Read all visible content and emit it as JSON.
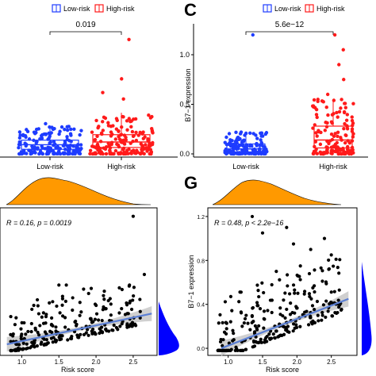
{
  "colors": {
    "low": "#1e3cff",
    "high": "#ff1a1a",
    "density": "#ff9900",
    "right_density": "#0000ff",
    "fit": "#5b7fd4",
    "ribbon": "#c8c8c8",
    "point": "#000000"
  },
  "panels": {
    "c": {
      "label": "C"
    },
    "g": {
      "label": "G"
    }
  },
  "legend": {
    "low": "Low-risk",
    "high": "High-risk"
  },
  "chart_data": [
    {
      "id": "left-boxplot",
      "type": "box",
      "categories": [
        "Low-risk",
        "High-risk"
      ],
      "ylabel": "",
      "ylim": [
        0,
        1.3
      ],
      "pvalue": "0.019",
      "boxes": [
        {
          "name": "Low-risk",
          "q1": 0.05,
          "median": 0.1,
          "q3": 0.15,
          "whisker_low": 0.0,
          "whisker_high": 0.3,
          "outliers": [
            0.33
          ]
        },
        {
          "name": "High-risk",
          "q1": 0.07,
          "median": 0.13,
          "q3": 0.21,
          "whisker_low": 0.0,
          "whisker_high": 0.45,
          "outliers": [
            0.6,
            0.67,
            0.82,
            1.25
          ]
        }
      ]
    },
    {
      "id": "c-boxplot",
      "type": "box",
      "categories": [
        "Low-risk",
        "High-risk"
      ],
      "ylabel": "B7−1 expression",
      "ylim": [
        0,
        1.2
      ],
      "yticks": [
        "0.0",
        "0.5",
        "1.0"
      ],
      "pvalue": "5.6e−12",
      "boxes": [
        {
          "name": "Low-risk",
          "q1": 0.02,
          "median": 0.05,
          "q3": 0.1,
          "whisker_low": 0.0,
          "whisker_high": 0.22,
          "outliers": [
            1.2
          ]
        },
        {
          "name": "High-risk",
          "q1": 0.06,
          "median": 0.14,
          "q3": 0.28,
          "whisker_low": 0.0,
          "whisker_high": 0.55,
          "outliers": [
            0.6,
            0.75,
            0.9,
            1.05,
            1.2
          ]
        }
      ]
    },
    {
      "id": "left-scatter",
      "type": "scatter",
      "annotation": "R = 0.16, p = 0.0019",
      "xlabel": "Risk score",
      "ylabel": "",
      "xlim": [
        0.75,
        2.8
      ],
      "ylim": [
        -0.05,
        1.3
      ],
      "xticks": [
        "1.0",
        "1.5",
        "2.0",
        "2.5"
      ],
      "fit": {
        "x": [
          0.8,
          2.75
        ],
        "y": [
          0.04,
          0.33
        ]
      },
      "highlight_points": [
        {
          "x": 2.5,
          "y": 1.25
        },
        {
          "x": 2.65,
          "y": 0.7
        },
        {
          "x": 2.45,
          "y": 0.6
        },
        {
          "x": 1.6,
          "y": 0.6
        },
        {
          "x": 1.5,
          "y": 0.6
        },
        {
          "x": 1.55,
          "y": 0.47
        },
        {
          "x": 1.9,
          "y": 0.52
        },
        {
          "x": 2.1,
          "y": 0.5
        },
        {
          "x": 2.2,
          "y": 0.42
        }
      ]
    },
    {
      "id": "g-scatter",
      "type": "scatter",
      "annotation": "R = 0.48, p < 2.2e−16",
      "xlabel": "Risk score",
      "ylabel": "B7−1 expression",
      "xlim": [
        0.75,
        2.85
      ],
      "ylim": [
        -0.05,
        1.25
      ],
      "xticks": [
        "1.0",
        "1.5",
        "2.0",
        "2.5"
      ],
      "yticks": [
        "0.0",
        "0.4",
        "0.8",
        "1.2"
      ],
      "fit": {
        "x": [
          0.9,
          2.75
        ],
        "y": [
          0.0,
          0.45
        ]
      },
      "highlight_points": [
        {
          "x": 1.35,
          "y": 1.2
        },
        {
          "x": 1.5,
          "y": 1.05
        },
        {
          "x": 1.85,
          "y": 1.1
        },
        {
          "x": 1.95,
          "y": 0.95
        },
        {
          "x": 2.2,
          "y": 0.9
        },
        {
          "x": 2.4,
          "y": 1.0
        },
        {
          "x": 2.5,
          "y": 0.85
        },
        {
          "x": 2.05,
          "y": 0.75
        },
        {
          "x": 1.7,
          "y": 0.7
        }
      ]
    }
  ]
}
